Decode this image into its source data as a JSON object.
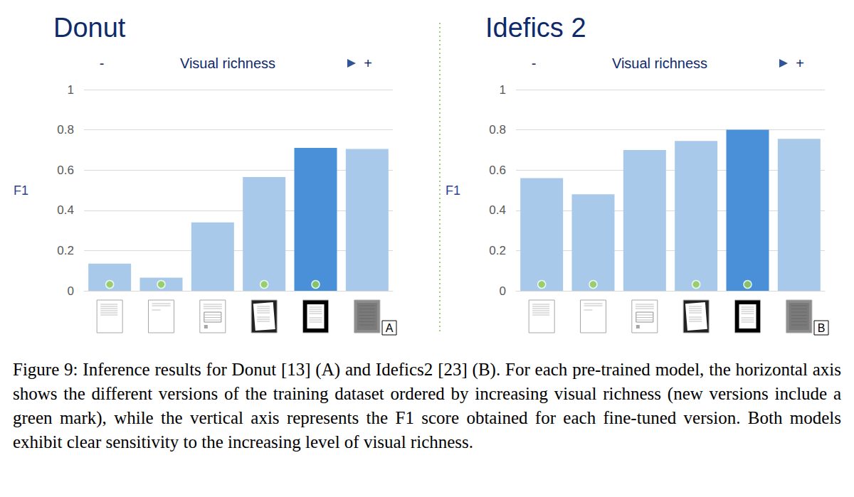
{
  "chart_data": [
    {
      "type": "bar",
      "title": "Donut",
      "panel": "A",
      "axis_annotation": {
        "left": "-",
        "text": "Visual richness",
        "right": "+"
      },
      "ylabel": "F1",
      "categories": [
        null,
        null,
        null,
        null,
        null,
        null
      ],
      "values": [
        0.135,
        0.065,
        0.34,
        0.565,
        0.71,
        0.705
      ],
      "colors": [
        "#a9c9ea",
        "#a9c9ea",
        "#a9c9ea",
        "#a9c9ea",
        "#4a90d9",
        "#a9c9ea"
      ],
      "new_version": [
        true,
        true,
        false,
        true,
        true,
        false
      ],
      "ylim": [
        0,
        1
      ],
      "yticks": [
        0,
        0.2,
        0.4,
        0.6,
        0.8,
        1
      ],
      "grid": true
    },
    {
      "type": "bar",
      "title": "Idefics 2",
      "panel": "B",
      "axis_annotation": {
        "left": "-",
        "text": "Visual richness",
        "right": "+"
      },
      "ylabel": "F1",
      "categories": [
        null,
        null,
        null,
        null,
        null,
        null
      ],
      "values": [
        0.56,
        0.48,
        0.7,
        0.745,
        0.8,
        0.755
      ],
      "colors": [
        "#a9c9ea",
        "#a9c9ea",
        "#a9c9ea",
        "#a9c9ea",
        "#4a90d9",
        "#a9c9ea"
      ],
      "new_version": [
        true,
        true,
        false,
        true,
        true,
        false
      ],
      "ylim": [
        0,
        1
      ],
      "yticks": [
        0,
        0.2,
        0.4,
        0.6,
        0.8,
        1
      ],
      "grid": true
    }
  ],
  "caption": "Figure 9: Inference results for Donut [13] (A) and Idefics2 [23] (B). For each pre-trained model, the horizontal axis shows the different versions of the training dataset ordered by increasing visual richness (new versions include a green mark), while the vertical axis represents the F1 score obtained for each fine-tuned version. Both models exhibit clear sensitivity to the increasing level of visual richness."
}
